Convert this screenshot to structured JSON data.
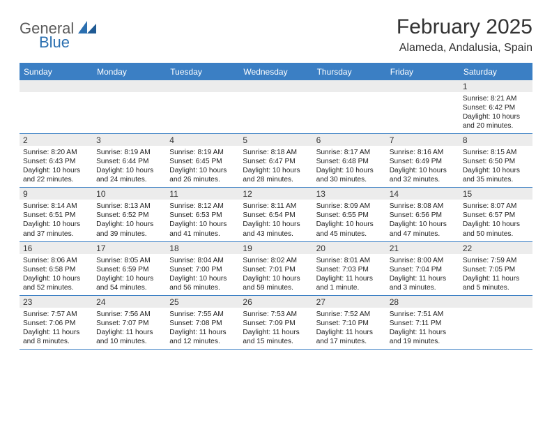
{
  "logo": {
    "text1": "General",
    "text2": "Blue"
  },
  "title": "February 2025",
  "subtitle": "Alameda, Andalusia, Spain",
  "day_names": [
    "Sunday",
    "Monday",
    "Tuesday",
    "Wednesday",
    "Thursday",
    "Friday",
    "Saturday"
  ],
  "colors": {
    "header_bg": "#3b7fc4",
    "header_text": "#ffffff",
    "row_num_bg": "#ececec",
    "rule": "#3b7fc4",
    "body_text": "#222222",
    "title_text": "#333333"
  },
  "days": {
    "1": {
      "sunrise": "8:21 AM",
      "sunset": "6:42 PM",
      "daylight": "10 hours and 20 minutes."
    },
    "2": {
      "sunrise": "8:20 AM",
      "sunset": "6:43 PM",
      "daylight": "10 hours and 22 minutes."
    },
    "3": {
      "sunrise": "8:19 AM",
      "sunset": "6:44 PM",
      "daylight": "10 hours and 24 minutes."
    },
    "4": {
      "sunrise": "8:19 AM",
      "sunset": "6:45 PM",
      "daylight": "10 hours and 26 minutes."
    },
    "5": {
      "sunrise": "8:18 AM",
      "sunset": "6:47 PM",
      "daylight": "10 hours and 28 minutes."
    },
    "6": {
      "sunrise": "8:17 AM",
      "sunset": "6:48 PM",
      "daylight": "10 hours and 30 minutes."
    },
    "7": {
      "sunrise": "8:16 AM",
      "sunset": "6:49 PM",
      "daylight": "10 hours and 32 minutes."
    },
    "8": {
      "sunrise": "8:15 AM",
      "sunset": "6:50 PM",
      "daylight": "10 hours and 35 minutes."
    },
    "9": {
      "sunrise": "8:14 AM",
      "sunset": "6:51 PM",
      "daylight": "10 hours and 37 minutes."
    },
    "10": {
      "sunrise": "8:13 AM",
      "sunset": "6:52 PM",
      "daylight": "10 hours and 39 minutes."
    },
    "11": {
      "sunrise": "8:12 AM",
      "sunset": "6:53 PM",
      "daylight": "10 hours and 41 minutes."
    },
    "12": {
      "sunrise": "8:11 AM",
      "sunset": "6:54 PM",
      "daylight": "10 hours and 43 minutes."
    },
    "13": {
      "sunrise": "8:09 AM",
      "sunset": "6:55 PM",
      "daylight": "10 hours and 45 minutes."
    },
    "14": {
      "sunrise": "8:08 AM",
      "sunset": "6:56 PM",
      "daylight": "10 hours and 47 minutes."
    },
    "15": {
      "sunrise": "8:07 AM",
      "sunset": "6:57 PM",
      "daylight": "10 hours and 50 minutes."
    },
    "16": {
      "sunrise": "8:06 AM",
      "sunset": "6:58 PM",
      "daylight": "10 hours and 52 minutes."
    },
    "17": {
      "sunrise": "8:05 AM",
      "sunset": "6:59 PM",
      "daylight": "10 hours and 54 minutes."
    },
    "18": {
      "sunrise": "8:04 AM",
      "sunset": "7:00 PM",
      "daylight": "10 hours and 56 minutes."
    },
    "19": {
      "sunrise": "8:02 AM",
      "sunset": "7:01 PM",
      "daylight": "10 hours and 59 minutes."
    },
    "20": {
      "sunrise": "8:01 AM",
      "sunset": "7:03 PM",
      "daylight": "11 hours and 1 minute."
    },
    "21": {
      "sunrise": "8:00 AM",
      "sunset": "7:04 PM",
      "daylight": "11 hours and 3 minutes."
    },
    "22": {
      "sunrise": "7:59 AM",
      "sunset": "7:05 PM",
      "daylight": "11 hours and 5 minutes."
    },
    "23": {
      "sunrise": "7:57 AM",
      "sunset": "7:06 PM",
      "daylight": "11 hours and 8 minutes."
    },
    "24": {
      "sunrise": "7:56 AM",
      "sunset": "7:07 PM",
      "daylight": "11 hours and 10 minutes."
    },
    "25": {
      "sunrise": "7:55 AM",
      "sunset": "7:08 PM",
      "daylight": "11 hours and 12 minutes."
    },
    "26": {
      "sunrise": "7:53 AM",
      "sunset": "7:09 PM",
      "daylight": "11 hours and 15 minutes."
    },
    "27": {
      "sunrise": "7:52 AM",
      "sunset": "7:10 PM",
      "daylight": "11 hours and 17 minutes."
    },
    "28": {
      "sunrise": "7:51 AM",
      "sunset": "7:11 PM",
      "daylight": "11 hours and 19 minutes."
    }
  },
  "labels": {
    "sunrise": "Sunrise: ",
    "sunset": "Sunset: ",
    "daylight": "Daylight: "
  },
  "weeks": [
    [
      null,
      null,
      null,
      null,
      null,
      null,
      "1"
    ],
    [
      "2",
      "3",
      "4",
      "5",
      "6",
      "7",
      "8"
    ],
    [
      "9",
      "10",
      "11",
      "12",
      "13",
      "14",
      "15"
    ],
    [
      "16",
      "17",
      "18",
      "19",
      "20",
      "21",
      "22"
    ],
    [
      "23",
      "24",
      "25",
      "26",
      "27",
      "28",
      null
    ]
  ]
}
